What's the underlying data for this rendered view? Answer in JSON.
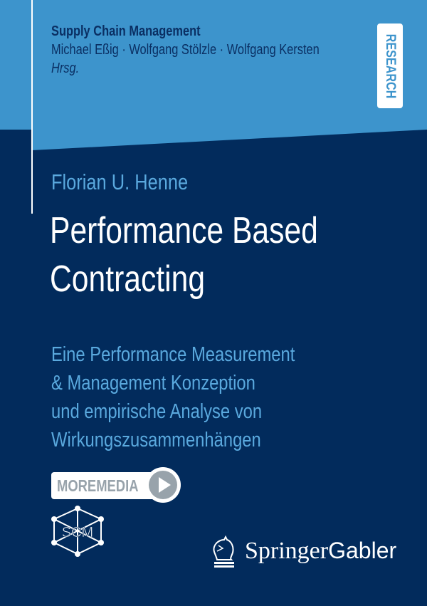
{
  "series": {
    "name": "Supply Chain Management",
    "editors": "Michael Eßig · Wolfgang Stölzle · Wolfgang Kersten",
    "editor_label": "Hrsg."
  },
  "badge": "RESEARCH",
  "book": {
    "author": "Florian U. Henne",
    "title_lines": [
      "Performance Based",
      "Contracting"
    ],
    "subtitle_lines": [
      "Eine Performance Measurement",
      "& Management Konzeption",
      "und empirische Analyse von",
      "Wirkungszusammenhängen"
    ]
  },
  "moremedia": {
    "label": "MOREMEDIA",
    "icon": "play-icon"
  },
  "logos": {
    "scm": "SCM",
    "publisher": "Springer",
    "imprint": "Gabler"
  },
  "colors": {
    "light_blue": "#3d94cc",
    "navy": "#022b5c",
    "accent_text": "#5aa9de"
  }
}
